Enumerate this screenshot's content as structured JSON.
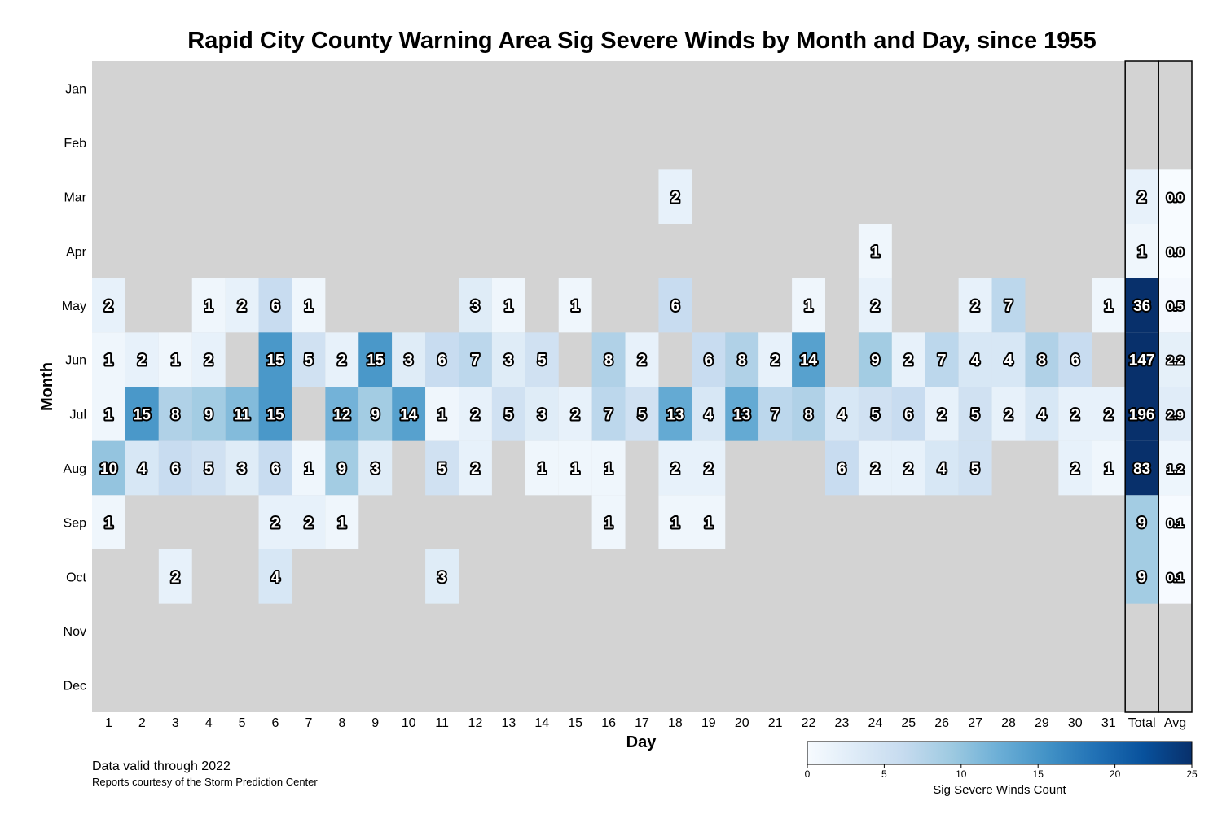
{
  "chart_data": {
    "type": "heatmap",
    "title": "Rapid City County Warning Area Sig Severe Winds by Month and Day, since 1955",
    "xlabel": "Day",
    "ylabel": "Month",
    "months": [
      "Jan",
      "Feb",
      "Mar",
      "Apr",
      "May",
      "Jun",
      "Jul",
      "Aug",
      "Sep",
      "Oct",
      "Nov",
      "Dec"
    ],
    "days": [
      "1",
      "2",
      "3",
      "4",
      "5",
      "6",
      "7",
      "8",
      "9",
      "10",
      "11",
      "12",
      "13",
      "14",
      "15",
      "16",
      "17",
      "18",
      "19",
      "20",
      "21",
      "22",
      "23",
      "24",
      "25",
      "26",
      "27",
      "28",
      "29",
      "30",
      "31"
    ],
    "summary_columns": [
      "Total",
      "Avg"
    ],
    "values": [
      [
        0,
        0,
        0,
        0,
        0,
        0,
        0,
        0,
        0,
        0,
        0,
        0,
        0,
        0,
        0,
        0,
        0,
        0,
        0,
        0,
        0,
        0,
        0,
        0,
        0,
        0,
        0,
        0,
        0,
        0,
        0
      ],
      [
        0,
        0,
        0,
        0,
        0,
        0,
        0,
        0,
        0,
        0,
        0,
        0,
        0,
        0,
        0,
        0,
        0,
        0,
        0,
        0,
        0,
        0,
        0,
        0,
        0,
        0,
        0,
        0,
        0,
        0,
        0
      ],
      [
        0,
        0,
        0,
        0,
        0,
        0,
        0,
        0,
        0,
        0,
        0,
        0,
        0,
        0,
        0,
        0,
        0,
        2,
        0,
        0,
        0,
        0,
        0,
        0,
        0,
        0,
        0,
        0,
        0,
        0,
        0
      ],
      [
        0,
        0,
        0,
        0,
        0,
        0,
        0,
        0,
        0,
        0,
        0,
        0,
        0,
        0,
        0,
        0,
        0,
        0,
        0,
        0,
        0,
        0,
        0,
        1,
        0,
        0,
        0,
        0,
        0,
        0,
        0
      ],
      [
        2,
        0,
        0,
        1,
        2,
        6,
        1,
        0,
        0,
        0,
        0,
        3,
        1,
        0,
        1,
        0,
        0,
        6,
        0,
        0,
        0,
        1,
        0,
        2,
        0,
        0,
        2,
        7,
        0,
        0,
        1
      ],
      [
        1,
        2,
        1,
        2,
        0,
        15,
        5,
        2,
        15,
        3,
        6,
        7,
        3,
        5,
        0,
        8,
        2,
        0,
        6,
        8,
        2,
        14,
        0,
        9,
        2,
        7,
        4,
        4,
        8,
        6,
        0
      ],
      [
        1,
        15,
        8,
        9,
        11,
        15,
        0,
        12,
        9,
        14,
        1,
        2,
        5,
        3,
        2,
        7,
        5,
        13,
        4,
        13,
        7,
        8,
        4,
        5,
        6,
        2,
        5,
        2,
        4,
        2,
        2
      ],
      [
        10,
        4,
        6,
        5,
        3,
        6,
        1,
        9,
        3,
        0,
        5,
        2,
        0,
        1,
        1,
        1,
        0,
        2,
        2,
        0,
        0,
        0,
        6,
        2,
        2,
        4,
        5,
        0,
        0,
        2,
        1
      ],
      [
        1,
        0,
        0,
        0,
        0,
        2,
        2,
        1,
        0,
        0,
        0,
        0,
        0,
        0,
        0,
        1,
        0,
        1,
        1,
        0,
        0,
        0,
        0,
        0,
        0,
        0,
        0,
        0,
        0,
        0,
        0
      ],
      [
        0,
        0,
        2,
        0,
        0,
        4,
        0,
        0,
        0,
        0,
        3,
        0,
        0,
        0,
        0,
        0,
        0,
        0,
        0,
        0,
        0,
        0,
        0,
        0,
        0,
        0,
        0,
        0,
        0,
        0,
        0
      ],
      [
        0,
        0,
        0,
        0,
        0,
        0,
        0,
        0,
        0,
        0,
        0,
        0,
        0,
        0,
        0,
        0,
        0,
        0,
        0,
        0,
        0,
        0,
        0,
        0,
        0,
        0,
        0,
        0,
        0,
        0,
        0
      ],
      [
        0,
        0,
        0,
        0,
        0,
        0,
        0,
        0,
        0,
        0,
        0,
        0,
        0,
        0,
        0,
        0,
        0,
        0,
        0,
        0,
        0,
        0,
        0,
        0,
        0,
        0,
        0,
        0,
        0,
        0,
        0
      ]
    ],
    "totals": [
      0,
      0,
      2,
      1,
      36,
      147,
      196,
      83,
      9,
      9,
      0,
      0
    ],
    "averages": [
      "0.0",
      "0.0",
      "0.0",
      "0.0",
      "0.5",
      "2.2",
      "2.9",
      "1.2",
      "0.1",
      "0.1",
      "0.0",
      "0.0"
    ],
    "colorbar": {
      "label": "Sig Severe Winds Count",
      "ticks": [
        0,
        5,
        10,
        15,
        20,
        25
      ],
      "range": [
        0,
        25
      ],
      "colors": [
        "#f7fbff",
        "#deebf7",
        "#c6dbef",
        "#9ecae1",
        "#6baed6",
        "#4292c6",
        "#2171b5",
        "#08519c",
        "#08306b"
      ]
    },
    "empty_cell_color": "#d3d3d3",
    "grid": false
  },
  "notes": {
    "line1": "Data valid through 2022",
    "line2": "Reports courtesy of the Storm Prediction Center"
  }
}
